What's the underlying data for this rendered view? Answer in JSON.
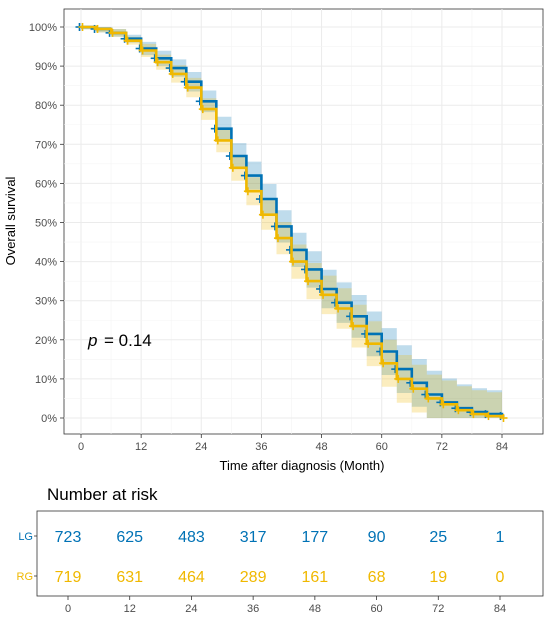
{
  "chart_data": [
    {
      "type": "line",
      "subtype": "kaplan-meier",
      "ylabel": "Overall survival",
      "xlabel": "Time after diagnosis (Month)",
      "xlim": [
        0,
        84
      ],
      "ylim": [
        0,
        100
      ],
      "x_ticks": [
        0,
        12,
        24,
        36,
        48,
        60,
        72,
        84
      ],
      "y_ticks": [
        0,
        10,
        20,
        30,
        40,
        50,
        60,
        70,
        80,
        90,
        100
      ],
      "y_tick_labels": [
        "0%",
        "10%",
        "20%",
        "30%",
        "40%",
        "50%",
        "60%",
        "70%",
        "80%",
        "90%",
        "100%"
      ],
      "grid": true,
      "confidence_bands": true,
      "annotation": {
        "p_symbol": "p",
        "p_text": "= 0.14"
      },
      "series": [
        {
          "name": "LG",
          "color": "#0072B5",
          "x": [
            0,
            3,
            6,
            9,
            12,
            15,
            18,
            21,
            24,
            27,
            30,
            33,
            36,
            39,
            42,
            45,
            48,
            51,
            54,
            57,
            60,
            63,
            66,
            69,
            72,
            75,
            78,
            81,
            84
          ],
          "y": [
            100,
            99.5,
            98.5,
            97,
            94.5,
            92,
            89.5,
            86,
            81,
            74,
            67,
            62,
            56,
            49,
            43,
            38,
            33,
            29.5,
            26,
            21.5,
            17,
            12.5,
            9,
            6,
            4,
            2.5,
            1.5,
            1,
            0.5
          ]
        },
        {
          "name": "RG",
          "color": "#F0B800",
          "x": [
            0,
            3,
            6,
            9,
            12,
            15,
            18,
            21,
            24,
            27,
            30,
            33,
            36,
            39,
            42,
            45,
            48,
            51,
            54,
            57,
            60,
            63,
            66,
            69,
            72,
            75,
            78,
            81,
            84
          ],
          "y": [
            100,
            99.5,
            98.5,
            96.5,
            94,
            91,
            88,
            84.5,
            79,
            71,
            64,
            58,
            52,
            46,
            40,
            35,
            31.5,
            28,
            23.5,
            19,
            14,
            10,
            7.5,
            5,
            3.5,
            2,
            1,
            0.5,
            0
          ]
        }
      ]
    },
    {
      "type": "table",
      "title": "Number at risk",
      "columns": [
        0,
        12,
        24,
        36,
        48,
        60,
        72,
        84
      ],
      "rows": [
        {
          "label": "LG",
          "color": "#0072B5",
          "values": [
            723,
            625,
            483,
            317,
            177,
            90,
            25,
            1
          ]
        },
        {
          "label": "RG",
          "color": "#F0B800",
          "values": [
            719,
            631,
            464,
            289,
            161,
            68,
            19,
            0
          ]
        }
      ]
    }
  ]
}
